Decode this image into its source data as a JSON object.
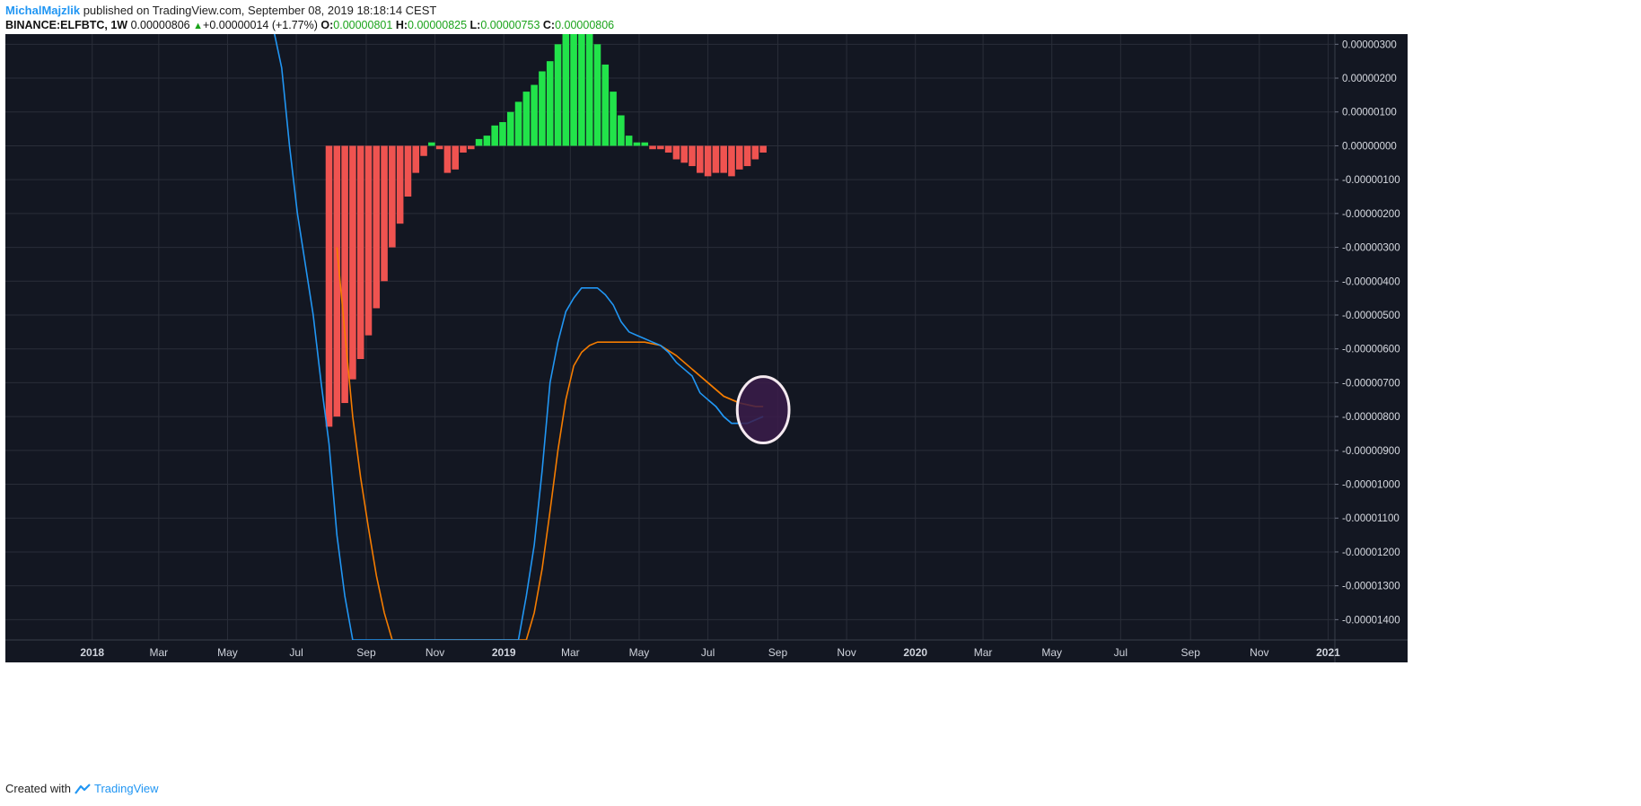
{
  "header": {
    "author": "MichalMajzlik",
    "published_text": "published on TradingView.com, September 08, 2019 18:18:14 CEST",
    "symbol": "BINANCE:ELFBTC, 1W",
    "last": "0.00000806",
    "change": "+0.00000014 (+1.77%)",
    "o_label": "O:",
    "o_value": "0.00000801",
    "h_label": "H:",
    "h_value": "0.00000825",
    "l_label": "L:",
    "l_value": "0.00000753",
    "c_label": "C:",
    "c_value": "0.00000806"
  },
  "footer": {
    "created_with": "Created with",
    "brand": "TradingView"
  },
  "colors": {
    "background": "#131722",
    "grid": "#2a2e39",
    "hist_positive": "#22e34a",
    "hist_negative": "#ef5350",
    "macd_line": "#2196f3",
    "signal_line": "#f57c00",
    "highlight_fill": "#3b1c4a",
    "highlight_stroke": "#f5eaf0"
  },
  "chart_data": {
    "type": "bar",
    "indicator": "MACD",
    "x_axis_labels": [
      "2018",
      "Mar",
      "May",
      "Jul",
      "Sep",
      "Nov",
      "2019",
      "Mar",
      "May",
      "Jul",
      "Sep",
      "Nov",
      "2020",
      "Mar",
      "May",
      "Jul",
      "Sep",
      "Nov",
      "2021"
    ],
    "x_axis_label_dates": [
      "2018-01-01",
      "2018-03-01",
      "2018-05-01",
      "2018-07-01",
      "2018-09-01",
      "2018-11-01",
      "2019-01-01",
      "2019-03-01",
      "2019-05-01",
      "2019-07-01",
      "2019-09-01",
      "2019-11-01",
      "2020-01-01",
      "2020-03-01",
      "2020-05-01",
      "2020-07-01",
      "2020-09-01",
      "2020-11-01",
      "2021-01-01"
    ],
    "y_axis_labels": [
      "0.00000300",
      "0.00000200",
      "0.00000100",
      "0.00000000",
      "-0.00000100",
      "-0.00000200",
      "-0.00000300",
      "-0.00000400",
      "-0.00000500",
      "-0.00000600",
      "-0.00000700",
      "-0.00000800",
      "-0.00000900",
      "-0.00001000",
      "-0.00001100",
      "-0.00001200",
      "-0.00001300",
      "-0.00001400"
    ],
    "y_axis_values": [
      3e-06,
      2e-06,
      1e-06,
      0,
      -1e-06,
      -2e-06,
      -3e-06,
      -4e-06,
      -5e-06,
      -6e-06,
      -7e-06,
      -8e-06,
      -9e-06,
      -1e-05,
      -1.1e-05,
      -1.2e-05,
      -1.3e-05,
      -1.4e-05
    ],
    "xlim": [
      "2017-10-16",
      "2021-01-07"
    ],
    "ylim": [
      -1.46e-05,
      3.3e-06
    ],
    "grid": true,
    "series": [
      {
        "kind": "histogram",
        "values": [
          {
            "x": "2018-07-30",
            "y": -8.3e-06
          },
          {
            "x": "2018-08-06",
            "y": -8e-06
          },
          {
            "x": "2018-08-13",
            "y": -7.6e-06
          },
          {
            "x": "2018-08-20",
            "y": -6.9e-06
          },
          {
            "x": "2018-08-27",
            "y": -6.3e-06
          },
          {
            "x": "2018-09-03",
            "y": -5.6e-06
          },
          {
            "x": "2018-09-10",
            "y": -4.8e-06
          },
          {
            "x": "2018-09-17",
            "y": -4e-06
          },
          {
            "x": "2018-09-24",
            "y": -3e-06
          },
          {
            "x": "2018-10-01",
            "y": -2.3e-06
          },
          {
            "x": "2018-10-08",
            "y": -1.5e-06
          },
          {
            "x": "2018-10-15",
            "y": -8e-07
          },
          {
            "x": "2018-10-22",
            "y": -3e-07
          },
          {
            "x": "2018-10-29",
            "y": 1e-07
          },
          {
            "x": "2018-11-05",
            "y": -1e-07
          },
          {
            "x": "2018-11-12",
            "y": -8e-07
          },
          {
            "x": "2018-11-19",
            "y": -7e-07
          },
          {
            "x": "2018-11-26",
            "y": -2e-07
          },
          {
            "x": "2018-12-03",
            "y": -1e-07
          },
          {
            "x": "2018-12-10",
            "y": 2e-07
          },
          {
            "x": "2018-12-17",
            "y": 3e-07
          },
          {
            "x": "2018-12-24",
            "y": 6e-07
          },
          {
            "x": "2018-12-31",
            "y": 7e-07
          },
          {
            "x": "2019-01-07",
            "y": 1e-06
          },
          {
            "x": "2019-01-14",
            "y": 1.3e-06
          },
          {
            "x": "2019-01-21",
            "y": 1.6e-06
          },
          {
            "x": "2019-01-28",
            "y": 1.8e-06
          },
          {
            "x": "2019-02-04",
            "y": 2.2e-06
          },
          {
            "x": "2019-02-11",
            "y": 2.5e-06
          },
          {
            "x": "2019-02-18",
            "y": 3e-06
          },
          {
            "x": "2019-02-25",
            "y": 3.3e-06
          },
          {
            "x": "2019-03-04",
            "y": 3.3e-06
          },
          {
            "x": "2019-03-11",
            "y": 3.3e-06
          },
          {
            "x": "2019-03-18",
            "y": 3.3e-06
          },
          {
            "x": "2019-03-25",
            "y": 3e-06
          },
          {
            "x": "2019-04-01",
            "y": 2.4e-06
          },
          {
            "x": "2019-04-08",
            "y": 1.6e-06
          },
          {
            "x": "2019-04-15",
            "y": 9e-07
          },
          {
            "x": "2019-04-22",
            "y": 3e-07
          },
          {
            "x": "2019-04-29",
            "y": 1e-07
          },
          {
            "x": "2019-05-06",
            "y": 1e-07
          },
          {
            "x": "2019-05-13",
            "y": -1e-07
          },
          {
            "x": "2019-05-20",
            "y": -1e-07
          },
          {
            "x": "2019-05-27",
            "y": -2e-07
          },
          {
            "x": "2019-06-03",
            "y": -4e-07
          },
          {
            "x": "2019-06-10",
            "y": -5e-07
          },
          {
            "x": "2019-06-17",
            "y": -6e-07
          },
          {
            "x": "2019-06-24",
            "y": -8e-07
          },
          {
            "x": "2019-07-01",
            "y": -9e-07
          },
          {
            "x": "2019-07-08",
            "y": -8e-07
          },
          {
            "x": "2019-07-15",
            "y": -8e-07
          },
          {
            "x": "2019-07-22",
            "y": -9e-07
          },
          {
            "x": "2019-07-29",
            "y": -7e-07
          },
          {
            "x": "2019-08-05",
            "y": -6e-07
          },
          {
            "x": "2019-08-12",
            "y": -4e-07
          },
          {
            "x": "2019-08-19",
            "y": -2e-07
          }
        ]
      },
      {
        "kind": "line",
        "role": "macd",
        "values": [
          {
            "x": "2018-06-11",
            "y": 3.4e-06
          },
          {
            "x": "2018-06-18",
            "y": 2.3e-06
          },
          {
            "x": "2018-06-25",
            "y": 0.0
          },
          {
            "x": "2018-07-02",
            "y": -2e-06
          },
          {
            "x": "2018-07-09",
            "y": -3.5e-06
          },
          {
            "x": "2018-07-16",
            "y": -5e-06
          },
          {
            "x": "2018-07-23",
            "y": -7e-06
          },
          {
            "x": "2018-07-30",
            "y": -8.8e-06
          },
          {
            "x": "2018-08-06",
            "y": -1.15e-05
          },
          {
            "x": "2018-08-13",
            "y": -1.33e-05
          },
          {
            "x": "2018-08-20",
            "y": -1.46e-05
          },
          {
            "x": "2019-01-14",
            "y": -1.46e-05
          },
          {
            "x": "2019-01-21",
            "y": -1.33e-05
          },
          {
            "x": "2019-01-28",
            "y": -1.18e-05
          },
          {
            "x": "2019-02-04",
            "y": -9.6e-06
          },
          {
            "x": "2019-02-11",
            "y": -7e-06
          },
          {
            "x": "2019-02-18",
            "y": -5.8e-06
          },
          {
            "x": "2019-02-25",
            "y": -4.9e-06
          },
          {
            "x": "2019-03-04",
            "y": -4.5e-06
          },
          {
            "x": "2019-03-11",
            "y": -4.2e-06
          },
          {
            "x": "2019-03-18",
            "y": -4.2e-06
          },
          {
            "x": "2019-03-25",
            "y": -4.2e-06
          },
          {
            "x": "2019-04-01",
            "y": -4.4e-06
          },
          {
            "x": "2019-04-08",
            "y": -4.7e-06
          },
          {
            "x": "2019-04-15",
            "y": -5.2e-06
          },
          {
            "x": "2019-04-22",
            "y": -5.5e-06
          },
          {
            "x": "2019-04-29",
            "y": -5.6e-06
          },
          {
            "x": "2019-05-06",
            "y": -5.7e-06
          },
          {
            "x": "2019-05-13",
            "y": -5.8e-06
          },
          {
            "x": "2019-05-20",
            "y": -5.9e-06
          },
          {
            "x": "2019-05-27",
            "y": -6.1e-06
          },
          {
            "x": "2019-06-03",
            "y": -6.4e-06
          },
          {
            "x": "2019-06-10",
            "y": -6.6e-06
          },
          {
            "x": "2019-06-17",
            "y": -6.8e-06
          },
          {
            "x": "2019-06-24",
            "y": -7.3e-06
          },
          {
            "x": "2019-07-01",
            "y": -7.5e-06
          },
          {
            "x": "2019-07-08",
            "y": -7.7e-06
          },
          {
            "x": "2019-07-15",
            "y": -8e-06
          },
          {
            "x": "2019-07-22",
            "y": -8.2e-06
          },
          {
            "x": "2019-07-29",
            "y": -8.2e-06
          },
          {
            "x": "2019-08-05",
            "y": -8.2e-06
          },
          {
            "x": "2019-08-12",
            "y": -8.1e-06
          },
          {
            "x": "2019-08-19",
            "y": -8e-06
          }
        ]
      },
      {
        "kind": "line",
        "role": "signal",
        "values": [
          {
            "x": "2018-08-06",
            "y": -3e-06
          },
          {
            "x": "2018-08-13",
            "y": -5.5e-06
          },
          {
            "x": "2018-08-20",
            "y": -8e-06
          },
          {
            "x": "2018-08-27",
            "y": -9.8e-06
          },
          {
            "x": "2018-09-03",
            "y": -1.13e-05
          },
          {
            "x": "2018-09-10",
            "y": -1.27e-05
          },
          {
            "x": "2018-09-17",
            "y": -1.38e-05
          },
          {
            "x": "2018-09-24",
            "y": -1.46e-05
          },
          {
            "x": "2019-01-21",
            "y": -1.46e-05
          },
          {
            "x": "2019-01-28",
            "y": -1.38e-05
          },
          {
            "x": "2019-02-04",
            "y": -1.25e-05
          },
          {
            "x": "2019-02-11",
            "y": -1.08e-05
          },
          {
            "x": "2019-02-18",
            "y": -9e-06
          },
          {
            "x": "2019-02-25",
            "y": -7.5e-06
          },
          {
            "x": "2019-03-04",
            "y": -6.5e-06
          },
          {
            "x": "2019-03-11",
            "y": -6.1e-06
          },
          {
            "x": "2019-03-18",
            "y": -5.9e-06
          },
          {
            "x": "2019-03-25",
            "y": -5.8e-06
          },
          {
            "x": "2019-04-01",
            "y": -5.8e-06
          },
          {
            "x": "2019-04-15",
            "y": -5.8e-06
          },
          {
            "x": "2019-04-22",
            "y": -5.8e-06
          },
          {
            "x": "2019-05-06",
            "y": -5.8e-06
          },
          {
            "x": "2019-05-20",
            "y": -5.9e-06
          },
          {
            "x": "2019-06-03",
            "y": -6.2e-06
          },
          {
            "x": "2019-06-17",
            "y": -6.6e-06
          },
          {
            "x": "2019-07-01",
            "y": -7e-06
          },
          {
            "x": "2019-07-15",
            "y": -7.4e-06
          },
          {
            "x": "2019-07-29",
            "y": -7.6e-06
          },
          {
            "x": "2019-08-12",
            "y": -7.7e-06
          },
          {
            "x": "2019-08-19",
            "y": -7.7e-06
          }
        ]
      }
    ],
    "annotations": [
      {
        "kind": "ellipse",
        "x": "2019-08-19",
        "y": -7.8e-06,
        "rx_days": 23,
        "ry": 9.8e-07
      }
    ]
  }
}
